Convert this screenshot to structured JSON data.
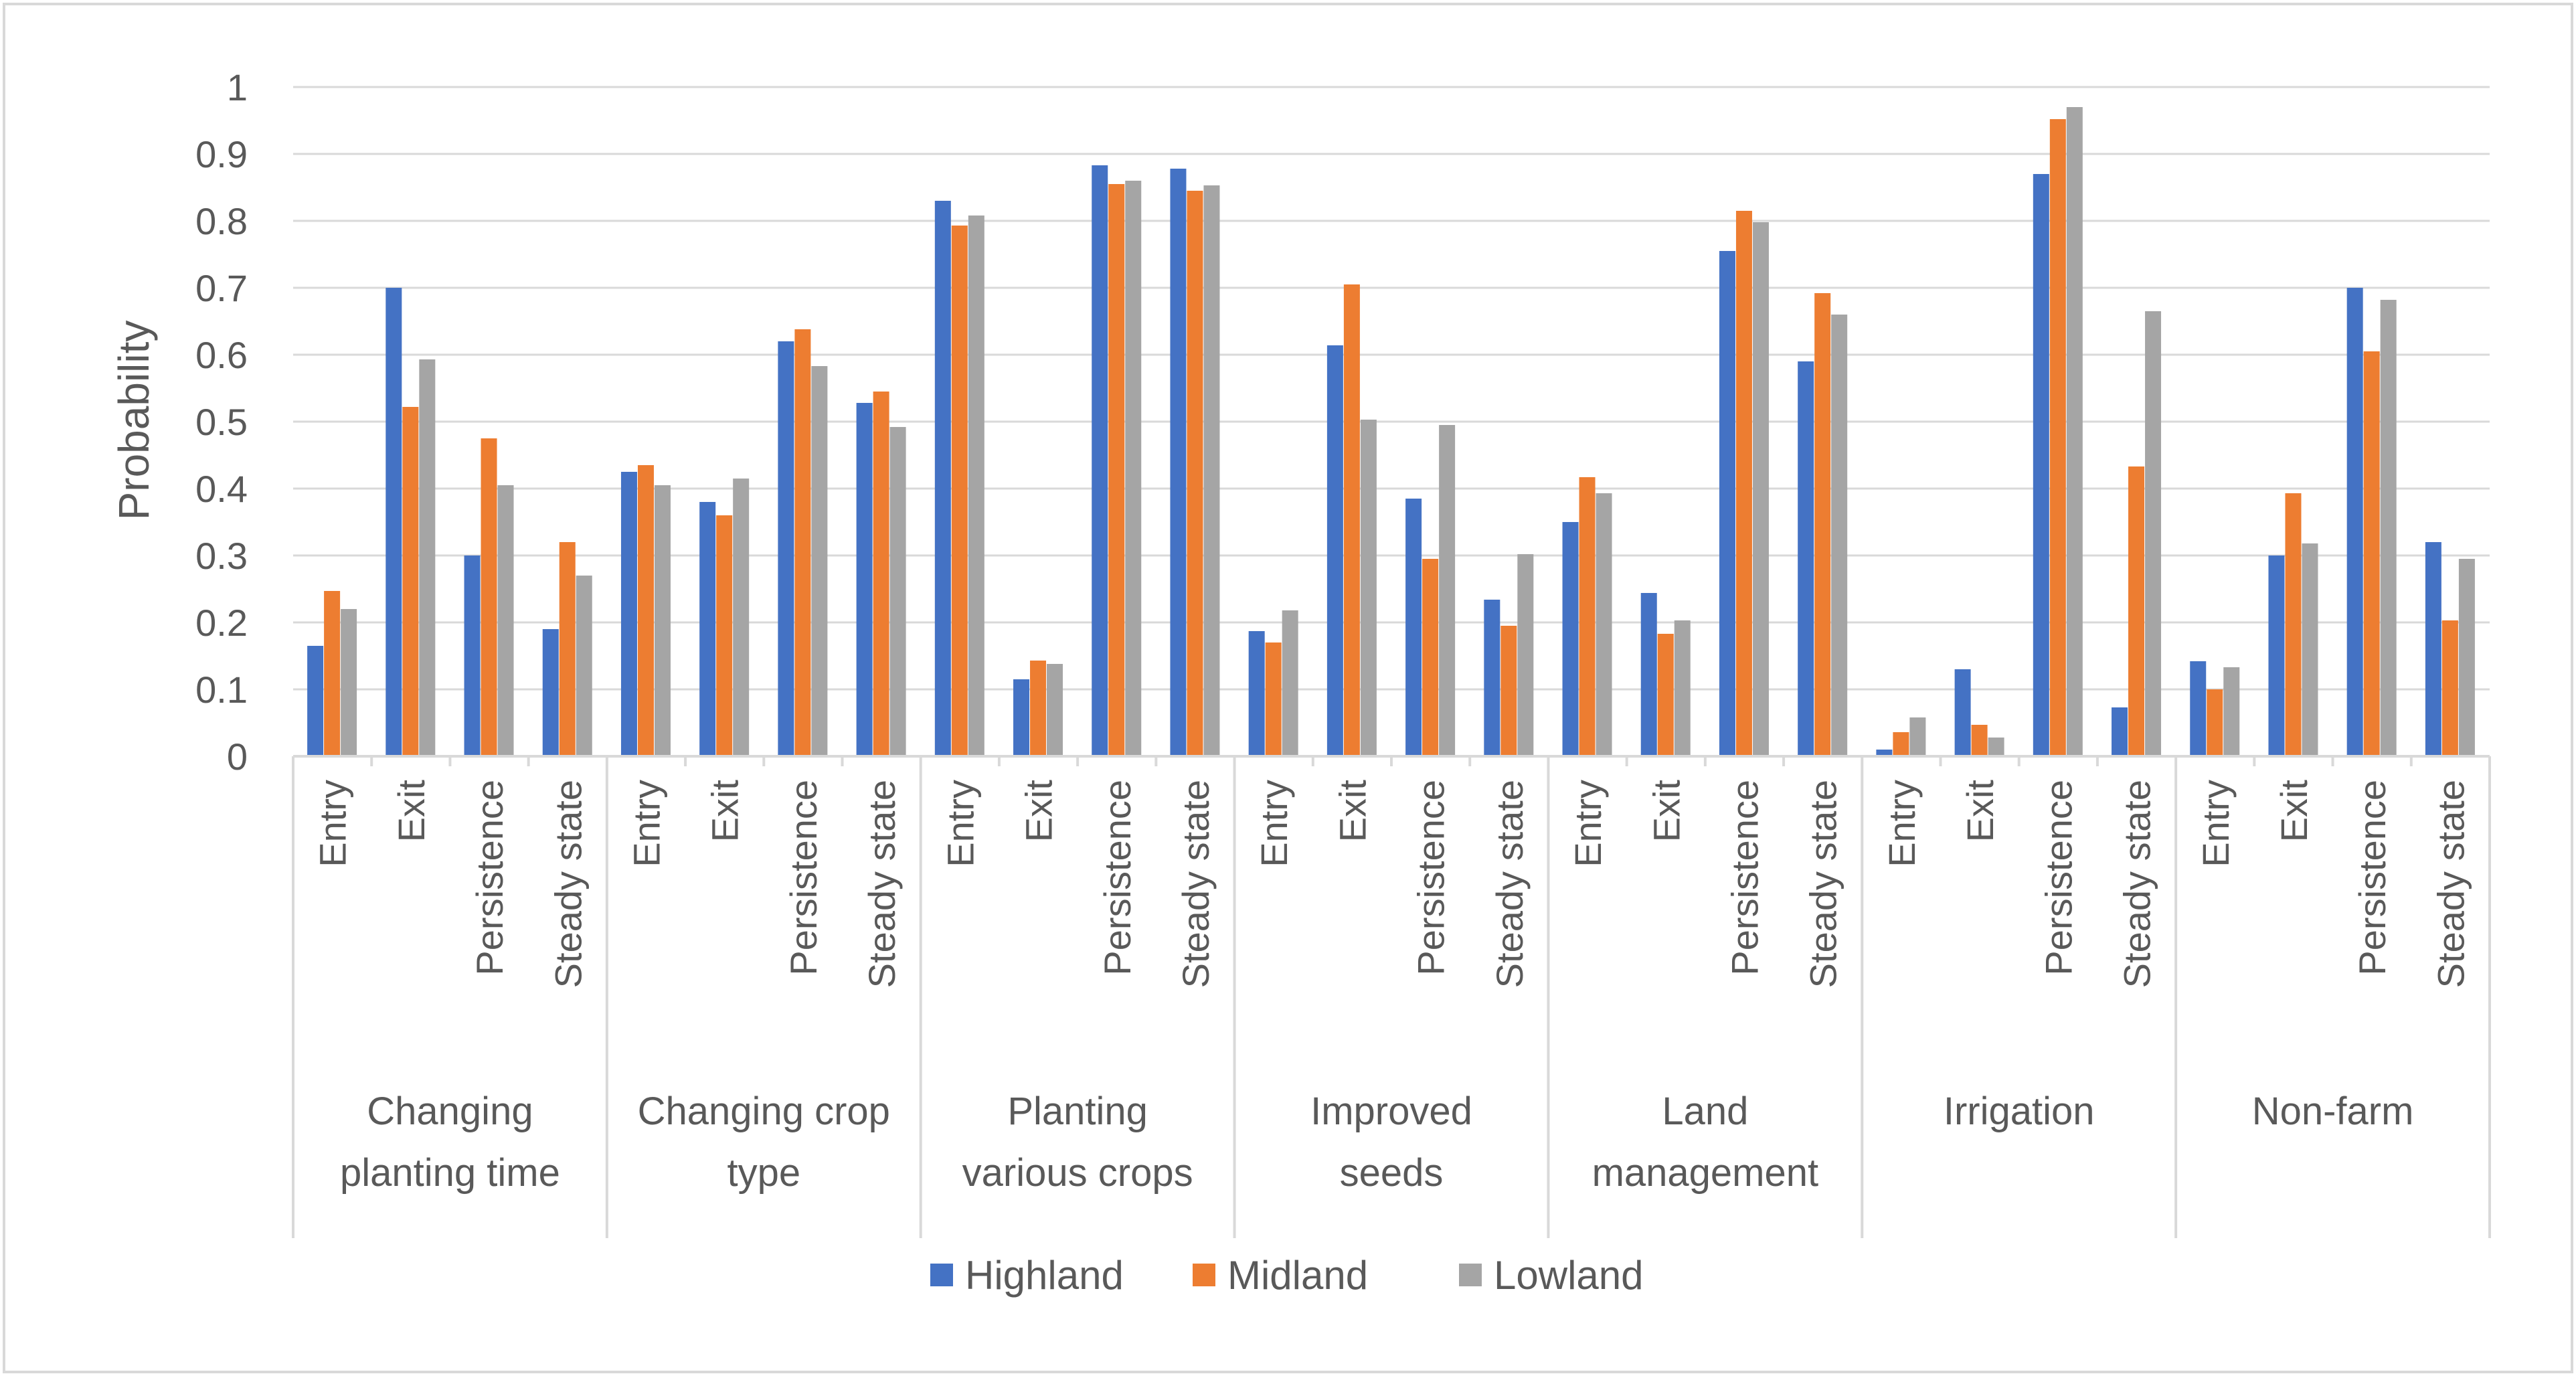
{
  "chart_data": {
    "type": "bar",
    "title": "",
    "xlabel": "",
    "ylabel": "Probability",
    "ylim": [
      0,
      1
    ],
    "yticks": [
      "0",
      "0.1",
      "0.2",
      "0.3",
      "0.4",
      "0.5",
      "0.6",
      "0.7",
      "0.8",
      "0.9",
      "1"
    ],
    "grid": true,
    "legend_position": "bottom",
    "groups": [
      {
        "line1": "Changing",
        "line2": "planting time"
      },
      {
        "line1": "Changing crop",
        "line2": "type"
      },
      {
        "line1": "Planting",
        "line2": "various crops"
      },
      {
        "line1": "Improved",
        "line2": "seeds"
      },
      {
        "line1": "Land",
        "line2": "management"
      },
      {
        "line1": "Irrigation",
        "line2": ""
      },
      {
        "line1": "Non-farm",
        "line2": ""
      }
    ],
    "subcategories": [
      "Entry",
      "Exit",
      "Persistence",
      "Steady state"
    ],
    "series": [
      {
        "name": "Highland",
        "color": "#4472C4",
        "values": [
          0.165,
          0.7,
          0.3,
          0.19,
          0.425,
          0.38,
          0.62,
          0.528,
          0.83,
          0.115,
          0.883,
          0.878,
          0.187,
          0.614,
          0.385,
          0.234,
          0.35,
          0.244,
          0.755,
          0.59,
          0.01,
          0.13,
          0.87,
          0.073,
          0.142,
          0.3,
          0.7,
          0.32
        ]
      },
      {
        "name": "Midland",
        "color": "#ED7D31",
        "values": [
          0.247,
          0.522,
          0.475,
          0.32,
          0.435,
          0.36,
          0.638,
          0.545,
          0.793,
          0.143,
          0.855,
          0.845,
          0.17,
          0.705,
          0.295,
          0.195,
          0.417,
          0.183,
          0.815,
          0.692,
          0.036,
          0.047,
          0.952,
          0.433,
          0.1,
          0.393,
          0.605,
          0.203
        ]
      },
      {
        "name": "Lowland",
        "color": "#A5A5A5",
        "values": [
          0.22,
          0.593,
          0.405,
          0.27,
          0.405,
          0.415,
          0.583,
          0.492,
          0.808,
          0.138,
          0.86,
          0.853,
          0.218,
          0.503,
          0.495,
          0.302,
          0.393,
          0.203,
          0.798,
          0.66,
          0.058,
          0.028,
          0.97,
          0.665,
          0.133,
          0.318,
          0.682,
          0.295
        ]
      }
    ]
  }
}
